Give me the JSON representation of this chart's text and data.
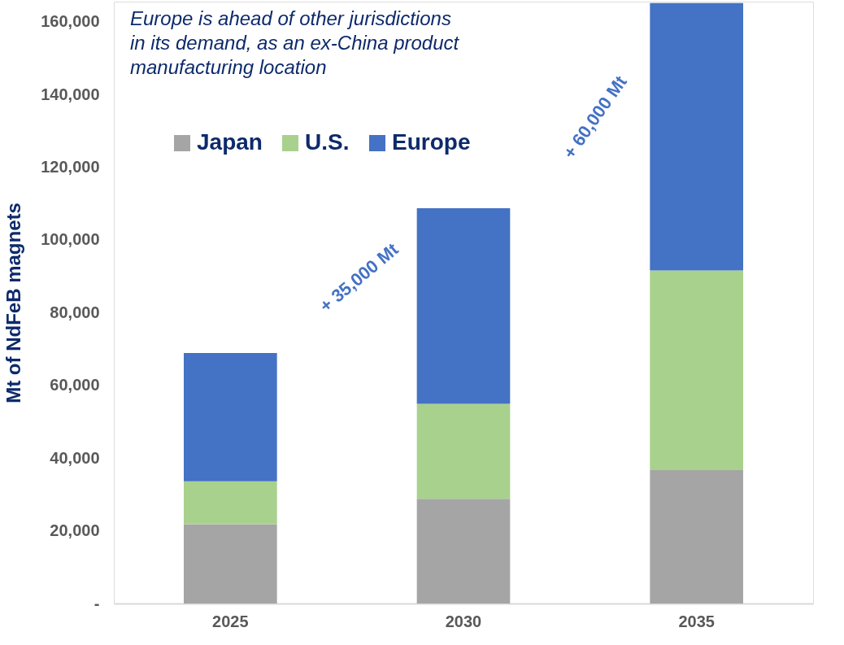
{
  "chart_data": {
    "type": "bar",
    "stacked": true,
    "ylabel": "Mt of NdFeB  magnets",
    "categories": [
      "2025",
      "2030",
      "2035"
    ],
    "series": [
      {
        "name": "Japan",
        "color": "#a5a5a5",
        "values": [
          21800,
          28800,
          36700
        ]
      },
      {
        "name": "U.S.",
        "color": "#a9d18e",
        "values": [
          11800,
          26100,
          54900
        ]
      },
      {
        "name": "Europe",
        "color": "#4472c4",
        "values": [
          35300,
          53800,
          73500
        ]
      }
    ],
    "ylim": [
      0,
      165500
    ],
    "yticks": [
      {
        "value": 0,
        "label": "-"
      },
      {
        "value": 20000,
        "label": "20,000"
      },
      {
        "value": 40000,
        "label": "40,000"
      },
      {
        "value": 60000,
        "label": "60,000"
      },
      {
        "value": 80000,
        "label": "80,000"
      },
      {
        "value": 100000,
        "label": "100,000"
      },
      {
        "value": 120000,
        "label": "120,000"
      },
      {
        "value": 140000,
        "label": "140,000"
      },
      {
        "value": 160000,
        "label": "160,000"
      }
    ],
    "grid": false,
    "legend": "top",
    "annotations": [
      "Europe is ahead of other jurisdictions\nin its demand, as an ex-China product\nmanufacturing location",
      "+ 35,000 Mt",
      "+ 60,000 Mt"
    ]
  }
}
